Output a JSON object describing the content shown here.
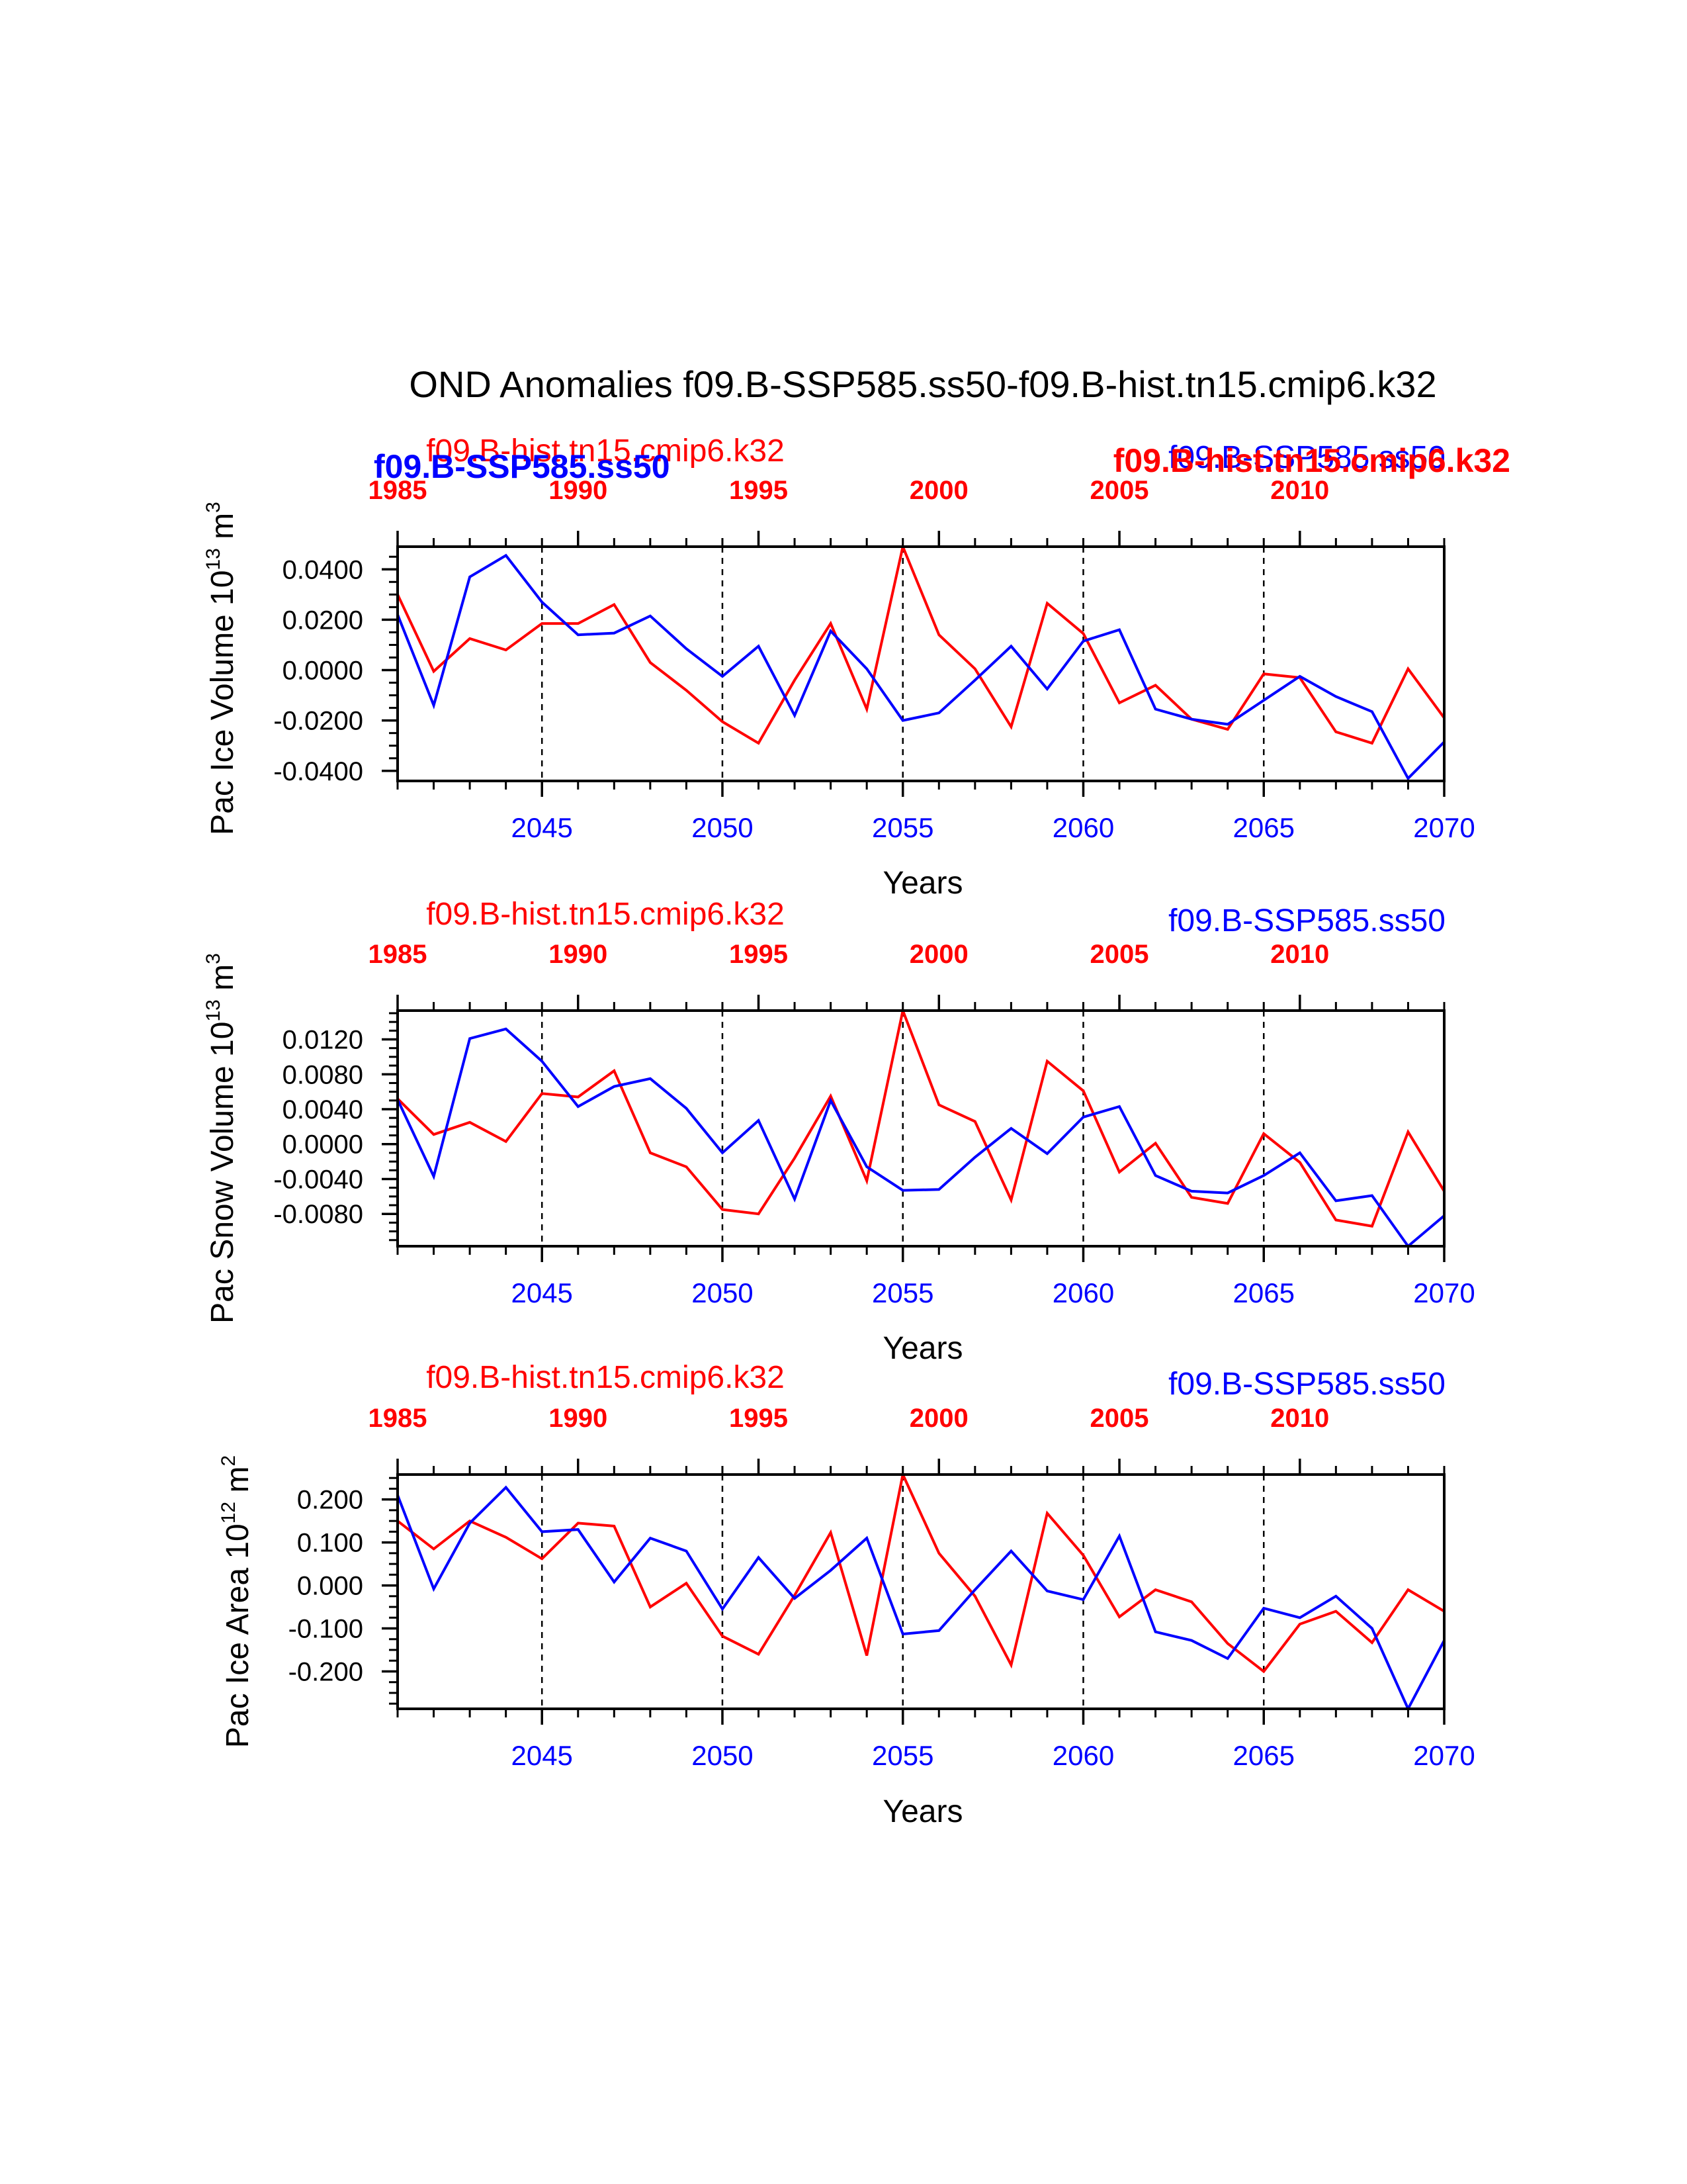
{
  "title": "OND Anomalies f09.B-SSP585.ss50-f09.B-hist.tn15.cmip6.k32",
  "colors": {
    "red": "#ff0000",
    "blue": "#0000ff",
    "black": "#000000"
  },
  "chart_data": [
    {
      "type": "line",
      "ylabel": "Pac Ice Volume 10",
      "ylabel_exp": "13",
      "ylabel_unit": " m",
      "ylabel_unit_exp": "3",
      "xlabel": "Years",
      "top_left_label": "f09.B-hist.tn15.cmip6.k32",
      "top_right_label": "f09.B-SSP585.ss50",
      "overlap_labels": {
        "left_bold": "f09.B-SSP585.ss50",
        "right_bold": "f09.B-hist.tn15.cmip6.k32"
      },
      "ylim": [
        -0.044,
        0.049
      ],
      "yticks": [
        "0.0400",
        "0.0200",
        "0.0000",
        "-0.0200",
        "-0.0400"
      ],
      "yticks_values": [
        0.04,
        0.02,
        0.0,
        -0.02,
        -0.04
      ],
      "yminor_step": 0.005,
      "series": [
        {
          "name": "f09.B-SSP585.ss50",
          "color": "#0000ff",
          "values": [
            0.022,
            -0.014,
            0.037,
            0.0455,
            0.027,
            0.014,
            0.0147,
            0.0215,
            0.0085,
            -0.0025,
            0.0095,
            -0.018,
            0.0155,
            0.0005,
            -0.02,
            -0.017,
            -0.004,
            0.0095,
            -0.0075,
            0.0115,
            0.016,
            -0.0155,
            -0.0195,
            -0.0215,
            -0.012,
            -0.0025,
            -0.0105,
            -0.0165,
            -0.043,
            -0.0285
          ]
        },
        {
          "name": "f09.B-hist.tn15.cmip6.k32",
          "color": "#ff0000",
          "values": [
            0.03,
            -0.0005,
            0.0125,
            0.008,
            0.0185,
            0.0185,
            0.026,
            0.003,
            -0.008,
            -0.0205,
            -0.029,
            -0.004,
            0.0185,
            -0.0155,
            0.049,
            0.014,
            0.0005,
            -0.0225,
            0.0265,
            0.0145,
            -0.013,
            -0.006,
            -0.0195,
            -0.0235,
            -0.0015,
            -0.003,
            -0.0245,
            -0.029,
            0.0005,
            -0.019
          ]
        }
      ]
    },
    {
      "type": "line",
      "ylabel": "Pac Snow Volume 10",
      "ylabel_exp": "13",
      "ylabel_unit": " m",
      "ylabel_unit_exp": "3",
      "xlabel": "Years",
      "top_left_label": "f09.B-hist.tn15.cmip6.k32",
      "top_right_label": "f09.B-SSP585.ss50",
      "ylim": [
        -0.0117,
        0.0153
      ],
      "yticks": [
        "0.0120",
        "0.0080",
        "0.0040",
        "0.0000",
        "-0.0040",
        "-0.0080"
      ],
      "yticks_values": [
        0.012,
        0.008,
        0.004,
        0.0,
        -0.004,
        -0.008
      ],
      "yminor_step": 0.001,
      "series": [
        {
          "name": "f09.B-SSP585.ss50",
          "color": "#0000ff",
          "values": [
            0.0051,
            -0.0037,
            0.0121,
            0.0132,
            0.0095,
            0.0043,
            0.0066,
            0.0075,
            0.0041,
            -0.001,
            0.0027,
            -0.0063,
            0.005,
            -0.0026,
            -0.0053,
            -0.0052,
            -0.0015,
            0.0018,
            -0.0011,
            0.0031,
            0.0043,
            -0.0036,
            -0.0054,
            -0.0056,
            -0.0036,
            -0.001,
            -0.0065,
            -0.0059,
            -0.0117,
            -0.0082
          ]
        },
        {
          "name": "f09.B-hist.tn15.cmip6.k32",
          "color": "#ff0000",
          "values": [
            0.0052,
            0.0011,
            0.0025,
            0.0003,
            0.0058,
            0.0054,
            0.0084,
            -0.001,
            -0.0026,
            -0.0075,
            -0.008,
            -0.0016,
            0.0055,
            -0.0042,
            0.0153,
            0.0045,
            0.0026,
            -0.0064,
            0.0095,
            0.0061,
            -0.0032,
            0.0001,
            -0.0061,
            -0.0068,
            0.0012,
            -0.0021,
            -0.0087,
            -0.0094,
            0.0014,
            -0.0054
          ]
        }
      ]
    },
    {
      "type": "line",
      "ylabel": "Pac Ice Area 10",
      "ylabel_exp": "12",
      "ylabel_unit": " m",
      "ylabel_unit_exp": "2",
      "xlabel": "Years",
      "top_left_label": "f09.B-hist.tn15.cmip6.k32",
      "top_right_label": "f09.B-SSP585.ss50",
      "ylim": [
        -0.287,
        0.258
      ],
      "yticks": [
        "0.200",
        "0.100",
        "0.000",
        "-0.100",
        "-0.200"
      ],
      "yticks_values": [
        0.2,
        0.1,
        0.0,
        -0.1,
        -0.2
      ],
      "yminor_step": 0.025,
      "series": [
        {
          "name": "f09.B-SSP585.ss50",
          "color": "#0000ff",
          "values": [
            0.21,
            -0.008,
            0.145,
            0.228,
            0.125,
            0.13,
            0.008,
            0.11,
            0.08,
            -0.055,
            0.065,
            -0.03,
            0.035,
            0.11,
            -0.113,
            -0.105,
            -0.01,
            0.08,
            -0.013,
            -0.033,
            0.115,
            -0.108,
            -0.128,
            -0.17,
            -0.053,
            -0.075,
            -0.025,
            -0.1,
            -0.287,
            -0.128
          ]
        },
        {
          "name": "f09.B-hist.tn15.cmip6.k32",
          "color": "#ff0000",
          "values": [
            0.15,
            0.085,
            0.15,
            0.112,
            0.062,
            0.145,
            0.138,
            -0.05,
            0.005,
            -0.118,
            -0.16,
            -0.023,
            0.123,
            -0.163,
            0.258,
            0.075,
            -0.025,
            -0.185,
            0.168,
            0.07,
            -0.073,
            -0.01,
            -0.038,
            -0.135,
            -0.2,
            -0.09,
            -0.06,
            -0.133,
            -0.01,
            -0.06
          ]
        }
      ]
    }
  ],
  "x_axis": {
    "xlim": [
      2041,
      2070
    ],
    "bottom_ticks": [
      "2045",
      "2050",
      "2055",
      "2060",
      "2065",
      "2070"
    ],
    "bottom_tick_values": [
      2045,
      2050,
      2055,
      2060,
      2065,
      2070
    ],
    "top_ticks": [
      "1985",
      "1990",
      "1995",
      "2000",
      "2005",
      "2010"
    ],
    "top_tick_values": [
      2041,
      2046,
      2051,
      2056,
      2061,
      2066
    ],
    "dashed_grid_at": [
      2045,
      2050,
      2055,
      2060,
      2065
    ]
  }
}
